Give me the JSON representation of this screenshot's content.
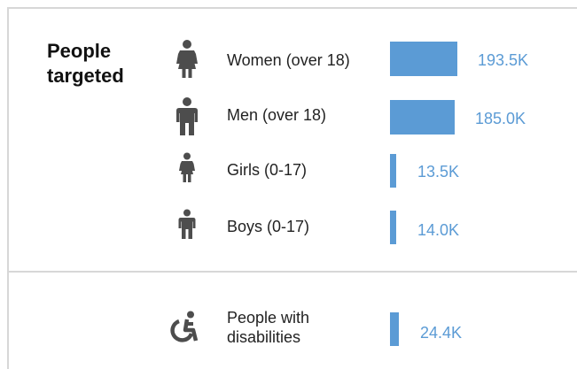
{
  "section_title_line1": "People",
  "section_title_line2": "targeted",
  "colors": {
    "bar": "#5b9bd5",
    "value_text": "#5b9bd5",
    "icon": "#4d4d4d",
    "divider": "#d7d7d7"
  },
  "chart_data": {
    "type": "bar",
    "orientation": "horizontal",
    "title": "People targeted",
    "categories": [
      "Women (over 18)",
      "Men (over 18)",
      "Girls (0-17)",
      "Boys  (0-17)",
      "People with disabilities"
    ],
    "values": [
      193.5,
      185.0,
      13.5,
      14.0,
      24.4
    ],
    "value_labels": [
      "193.5K",
      "185.0K",
      "13.5K",
      "14.0K",
      "24.4K"
    ],
    "value_unit": "K",
    "icons": [
      "woman-icon",
      "man-icon",
      "girl-icon",
      "boy-icon",
      "wheelchair-icon"
    ],
    "label_lines": [
      [
        "Women (over 18)"
      ],
      [
        "Men (over 18)"
      ],
      [
        "Girls (0-17)"
      ],
      [
        "Boys  (0-17)"
      ],
      [
        "People with",
        "disabilities"
      ]
    ],
    "xlim": [
      0,
      193.5
    ],
    "grid": false,
    "legend": "none"
  }
}
